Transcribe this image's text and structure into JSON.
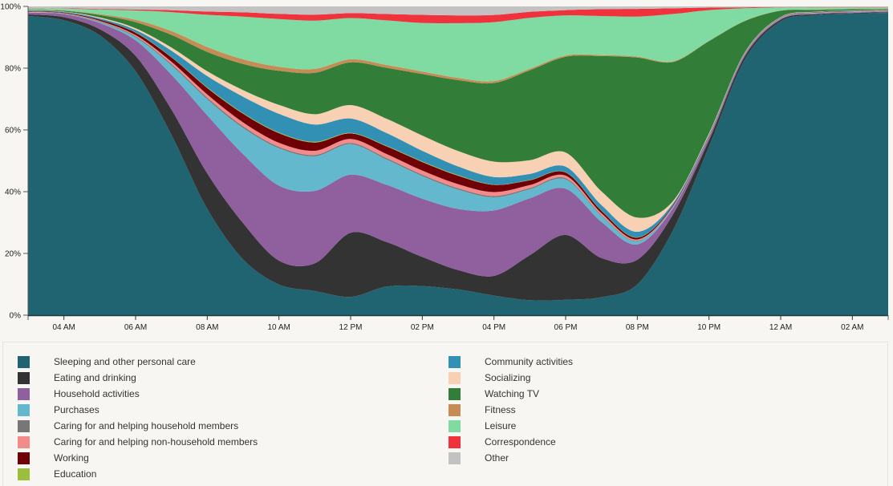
{
  "chart_data": {
    "type": "area",
    "stacked": true,
    "normalized": true,
    "title": "",
    "xlabel": "",
    "ylabel": "",
    "ylim": [
      0,
      100
    ],
    "y_ticks": [
      "0%",
      "20%",
      "40%",
      "60%",
      "80%",
      "100%"
    ],
    "x_hours": [
      3,
      4,
      5,
      6,
      7,
      8,
      9,
      10,
      11,
      12,
      13,
      14,
      15,
      16,
      17,
      18,
      19,
      20,
      21,
      22,
      23,
      24,
      25,
      26,
      27
    ],
    "x_ticks": [
      {
        "hour": 4,
        "label": "04 AM"
      },
      {
        "hour": 6,
        "label": "06 AM"
      },
      {
        "hour": 8,
        "label": "08 AM"
      },
      {
        "hour": 10,
        "label": "10 AM"
      },
      {
        "hour": 12,
        "label": "12 PM"
      },
      {
        "hour": 14,
        "label": "02 PM"
      },
      {
        "hour": 16,
        "label": "04 PM"
      },
      {
        "hour": 18,
        "label": "06 PM"
      },
      {
        "hour": 20,
        "label": "08 PM"
      },
      {
        "hour": 22,
        "label": "10 PM"
      },
      {
        "hour": 24,
        "label": "12 AM"
      },
      {
        "hour": 26,
        "label": "02 AM"
      }
    ],
    "legend_position": "bottom",
    "series": [
      {
        "name": "Sleeping and other personal care",
        "color": "#1f6470",
        "values": [
          98,
          96,
          91,
          79,
          57,
          33,
          17,
          9,
          7,
          6,
          9,
          9,
          8,
          6,
          5,
          5,
          6,
          10,
          27,
          55,
          82,
          95,
          97,
          98,
          98
        ]
      },
      {
        "name": "Eating and drinking",
        "color": "#333333",
        "values": [
          0.5,
          1,
          2,
          5,
          8,
          11,
          11,
          7,
          8,
          21,
          14,
          9,
          6,
          6,
          15,
          21,
          13,
          8,
          5,
          2,
          1,
          0.5,
          0.3,
          0.2,
          0.2
        ]
      },
      {
        "name": "Household activities",
        "color": "#8f5f9e",
        "values": [
          0.5,
          1,
          2,
          5,
          11,
          18,
          21,
          22,
          21,
          19,
          18,
          18,
          19,
          20,
          19,
          15,
          12,
          5,
          2,
          1,
          0.5,
          0.3,
          0.2,
          0.2,
          0.2
        ]
      },
      {
        "name": "Purchases",
        "color": "#63b8cd",
        "values": [
          0.1,
          0.1,
          0.3,
          1,
          3,
          5,
          8,
          11,
          10,
          10,
          8,
          7,
          6,
          4,
          3,
          3,
          2,
          1,
          0.3,
          0.2,
          0.1,
          0.1,
          0.1,
          0.1,
          0.1
        ]
      },
      {
        "name": "Caring for and helping household members",
        "color": "#777777",
        "values": [
          0.1,
          0.1,
          0.2,
          0.3,
          0.4,
          0.5,
          0.5,
          0.4,
          0.4,
          0.4,
          0.4,
          0.4,
          0.4,
          0.4,
          0.4,
          0.4,
          0.3,
          0.2,
          0.1,
          0.1,
          0.1,
          0.1,
          0.1,
          0.1,
          0.1
        ]
      },
      {
        "name": "Caring for and helping non-household members",
        "color": "#f48a8a",
        "values": [
          0.1,
          0.1,
          0.2,
          0.4,
          0.7,
          1,
          1.2,
          1.2,
          1.2,
          1.3,
          1.3,
          1.3,
          1.3,
          1.2,
          1,
          0.8,
          0.6,
          0.4,
          0.2,
          0.1,
          0.1,
          0.1,
          0.1,
          0.1,
          0.1
        ]
      },
      {
        "name": "Working",
        "color": "#6e0006",
        "values": [
          0.2,
          0.2,
          0.4,
          0.8,
          1.4,
          2,
          2.6,
          2.8,
          2.4,
          1.8,
          2.4,
          2.6,
          2.6,
          2.2,
          1.6,
          1,
          0.8,
          0.6,
          0.3,
          0.2,
          0.1,
          0.1,
          0.1,
          0.1,
          0.1
        ]
      },
      {
        "name": "Education",
        "color": "#9abf3c",
        "values": [
          0,
          0,
          0,
          0.1,
          0.1,
          0.2,
          0.2,
          0.2,
          0.2,
          0.2,
          0.2,
          0.2,
          0.2,
          0.1,
          0.1,
          0.1,
          0.1,
          0.1,
          0,
          0,
          0,
          0,
          0,
          0,
          0
        ]
      },
      {
        "name": "Community activities",
        "color": "#3290b4",
        "values": [
          0.2,
          0.2,
          0.4,
          0.8,
          2,
          3.5,
          5,
          5.5,
          5,
          4.7,
          4,
          3.3,
          2.7,
          2.3,
          2,
          1.8,
          1.8,
          1.8,
          0.6,
          0.3,
          0.2,
          0.1,
          0.1,
          0.1,
          0.1
        ]
      },
      {
        "name": "Socializing",
        "color": "#f8d0b3",
        "values": [
          0.1,
          0.1,
          0.3,
          0.5,
          1,
          1.5,
          2,
          2.6,
          3,
          4.4,
          4.5,
          4.7,
          4.8,
          4.7,
          4.6,
          4.6,
          4.6,
          4.6,
          0.7,
          0.4,
          0.2,
          0.1,
          0.1,
          0.1,
          0.1
        ]
      },
      {
        "name": "Watching TV",
        "color": "#327d37",
        "values": [
          0.2,
          0.3,
          0.8,
          2,
          4,
          6,
          8,
          10,
          12,
          14,
          16,
          19,
          22,
          24,
          30,
          31,
          45,
          52,
          44,
          30,
          10,
          2,
          0.6,
          0.4,
          0.3
        ]
      },
      {
        "name": "Fitness",
        "color": "#c58d55",
        "values": [
          0.1,
          0.1,
          0.3,
          0.8,
          1.2,
          1.5,
          1.4,
          1.2,
          1.1,
          1,
          0.9,
          0.8,
          0.7,
          0.6,
          0.5,
          0.4,
          0.3,
          0.3,
          0.2,
          0.1,
          0.1,
          0.1,
          0.1,
          0.1,
          0.1
        ]
      },
      {
        "name": "Leisure",
        "color": "#80dba2",
        "values": [
          0.4,
          0.6,
          1.5,
          3,
          6,
          10,
          13,
          14,
          14,
          13.5,
          14,
          15,
          17,
          18,
          17,
          13,
          13,
          13,
          15,
          10,
          4,
          1,
          0.7,
          0.5,
          0.4
        ]
      },
      {
        "name": "Correspondence",
        "color": "#ef323c",
        "values": [
          0.1,
          0.1,
          0.2,
          0.3,
          0.6,
          1,
          1.3,
          1.5,
          1.7,
          1.6,
          2,
          2.5,
          2.4,
          2.2,
          2,
          1.7,
          2.3,
          2.5,
          1.8,
          0.8,
          0.3,
          0.1,
          0.1,
          0.1,
          0.1
        ]
      },
      {
        "name": "Other",
        "color": "#c2c2c2",
        "values": [
          0.5,
          0.6,
          0.8,
          1,
          1.2,
          1.6,
          1.8,
          2.2,
          2.4,
          2.2,
          2.4,
          2.6,
          2.8,
          2.6,
          1.8,
          1.2,
          0.9,
          0.8,
          0.6,
          0.4,
          0.3,
          0.2,
          0.2,
          0.2,
          0.2
        ]
      }
    ]
  }
}
